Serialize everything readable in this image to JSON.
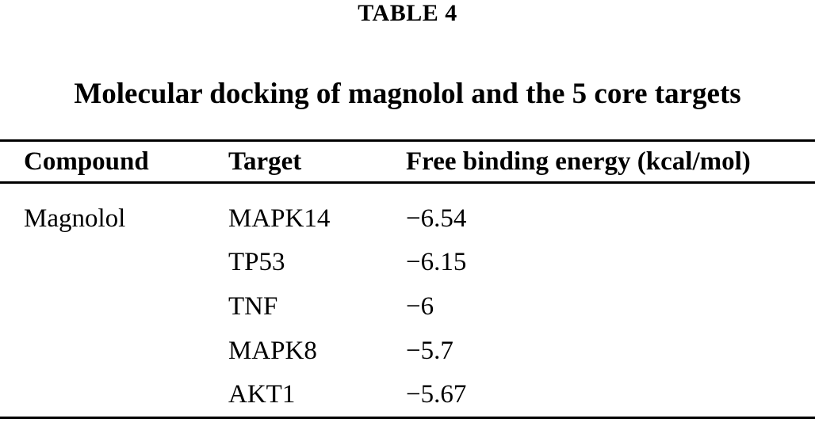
{
  "table": {
    "label": "TABLE 4",
    "caption": "Molecular docking of magnolol and the 5 core targets",
    "columns": [
      "Compound",
      "Target",
      "Free binding energy (kcal/mol)"
    ],
    "rows": [
      {
        "compound": "Magnolol",
        "target": "MAPK14",
        "energy": "−6.54"
      },
      {
        "compound": "",
        "target": "TP53",
        "energy": "−6.15"
      },
      {
        "compound": "",
        "target": "TNF",
        "energy": "−6"
      },
      {
        "compound": "",
        "target": "MAPK8",
        "energy": "−5.7"
      },
      {
        "compound": "",
        "target": "AKT1",
        "energy": "−5.67"
      }
    ]
  },
  "colors": {
    "text": "#000000",
    "background": "#ffffff",
    "rule": "#000000"
  }
}
